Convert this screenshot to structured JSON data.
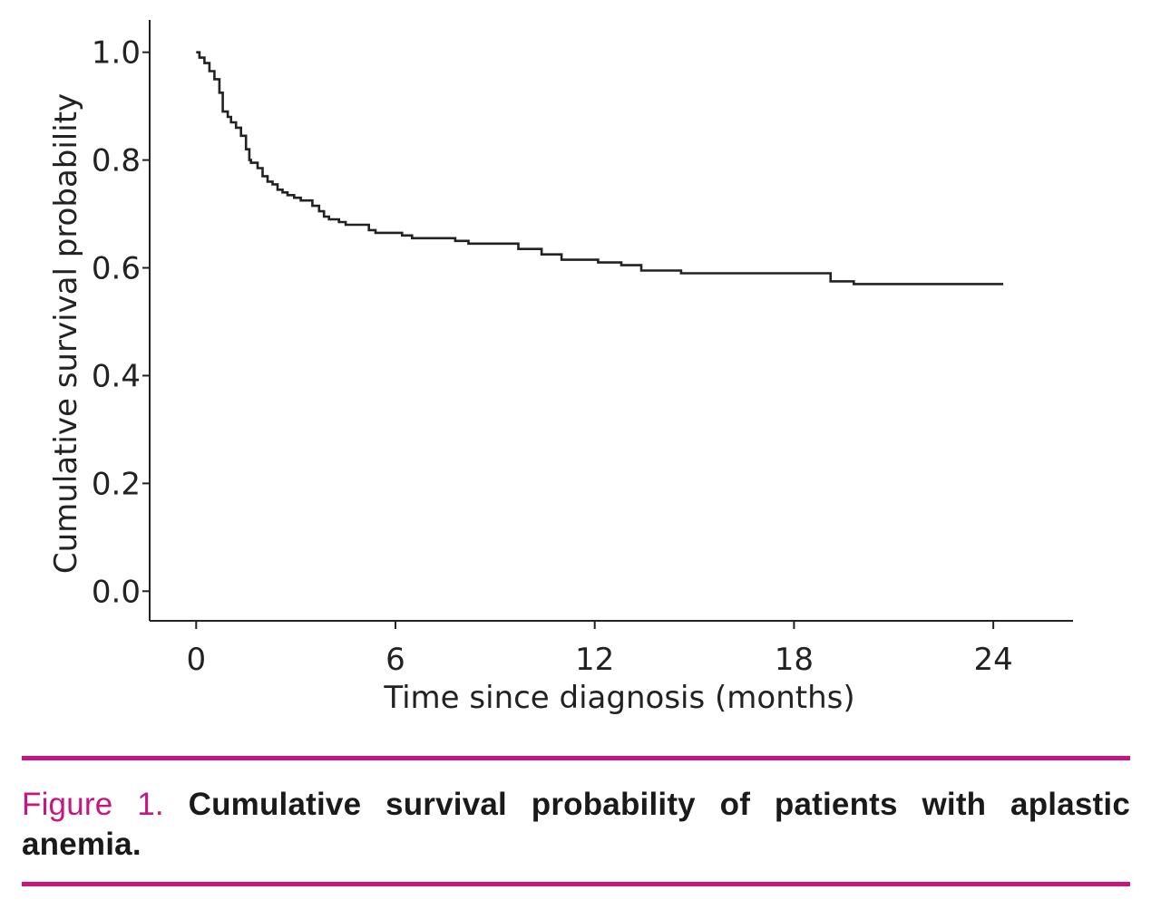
{
  "colors": {
    "accent": "#c8177c",
    "line": "#222222",
    "axis": "#222222"
  },
  "chart_data": {
    "type": "line",
    "subtype": "kaplan-meier step",
    "title": "",
    "xlabel": "Time since diagnosis (months)",
    "ylabel": "Cumulative survival probability",
    "xlim": [
      -1.4,
      26.4
    ],
    "ylim": [
      -0.055,
      1.06
    ],
    "x_ticks": [
      0,
      6,
      12,
      18,
      24
    ],
    "x_tick_labels": [
      "0",
      "6",
      "12",
      "18",
      "24"
    ],
    "y_ticks": [
      0.0,
      0.2,
      0.4,
      0.6,
      0.8,
      1.0
    ],
    "y_tick_labels": [
      "0.0",
      "0.2",
      "0.4",
      "0.6",
      "0.8",
      "1.0"
    ],
    "grid": false,
    "legend": "none",
    "series": [
      {
        "name": "Cumulative survival",
        "x": [
          0,
          0.1,
          0.25,
          0.4,
          0.55,
          0.7,
          0.8,
          0.95,
          1.05,
          1.2,
          1.35,
          1.5,
          1.6,
          1.65,
          1.85,
          2.0,
          2.15,
          2.3,
          2.45,
          2.6,
          2.75,
          2.95,
          3.15,
          3.5,
          3.7,
          3.85,
          4.0,
          4.3,
          4.5,
          5.2,
          5.4,
          6.2,
          6.5,
          7.8,
          8.2,
          9.7,
          10.4,
          11.0,
          12.1,
          12.8,
          13.4,
          14.6,
          19.1,
          19.8,
          24.3
        ],
        "y": [
          1.0,
          0.99,
          0.98,
          0.965,
          0.95,
          0.925,
          0.89,
          0.88,
          0.87,
          0.86,
          0.845,
          0.82,
          0.8,
          0.795,
          0.785,
          0.77,
          0.76,
          0.755,
          0.745,
          0.74,
          0.735,
          0.73,
          0.725,
          0.715,
          0.705,
          0.695,
          0.69,
          0.685,
          0.68,
          0.67,
          0.665,
          0.66,
          0.655,
          0.65,
          0.645,
          0.635,
          0.625,
          0.615,
          0.61,
          0.605,
          0.595,
          0.59,
          0.575,
          0.57,
          0.57
        ]
      }
    ]
  },
  "caption": {
    "label": "Figure 1.",
    "text": " Cumulative survival probability of patients with aplastic anemia."
  }
}
